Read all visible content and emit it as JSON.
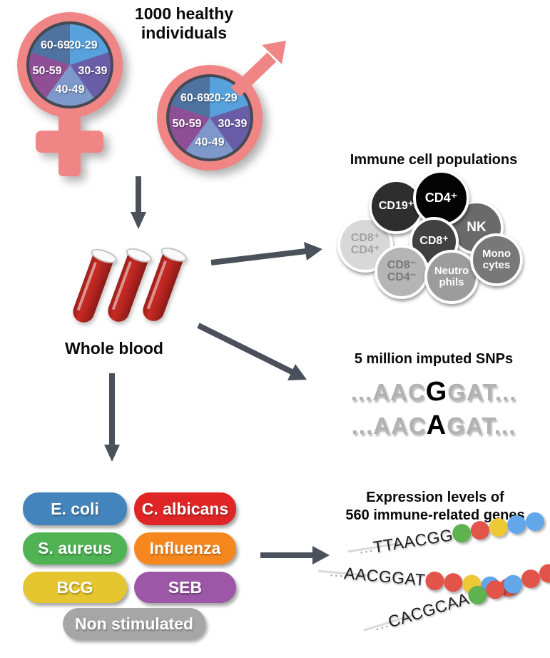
{
  "title": "1000 healthy\nindividuals",
  "cohort": {
    "symbol_color": "#ef8584",
    "age_groups": [
      "20-29",
      "30-39",
      "40-49",
      "50-59",
      "60-69"
    ],
    "slice_colors": [
      "#57a1dc",
      "#6a5da7",
      "#7d98ca",
      "#8f4f97",
      "#4e73a1"
    ]
  },
  "whole_blood": {
    "label": "Whole blood"
  },
  "immune_cells": {
    "title": "Immune cell populations",
    "cells": [
      {
        "label": "CD8⁺\nCD4⁺",
        "bg": "#d8d8d8",
        "fg": "#a2a2a2"
      },
      {
        "label": "CD19⁺",
        "bg": "#2e2e2e",
        "fg": "#ffffff"
      },
      {
        "label": "NK",
        "bg": "#6a6a6a",
        "fg": "#ffffff"
      },
      {
        "label": "CD4⁺",
        "bg": "#040404",
        "fg": "#ffffff"
      },
      {
        "label": "CD8⁺",
        "bg": "#414141",
        "fg": "#ffffff"
      },
      {
        "label": "CD8⁻\nCD4⁻",
        "bg": "#b5b5b5",
        "fg": "#787878"
      },
      {
        "label": "Neutro\nphils",
        "bg": "#9c9c9c",
        "fg": "#ffffff"
      },
      {
        "label": "Mono\ncytes",
        "bg": "#787878",
        "fg": "#ffffff"
      }
    ]
  },
  "snps": {
    "title": "5 million imputed SNPs",
    "sequences": [
      {
        "left": "...AAC",
        "snp": "G",
        "right": "GAT..."
      },
      {
        "left": "...AAC",
        "snp": "A",
        "right": "GAT..."
      }
    ]
  },
  "stimuli": {
    "items": [
      {
        "label": "E. coli",
        "color": "#4384bc"
      },
      {
        "label": "C. albicans",
        "color": "#e02526"
      },
      {
        "label": "S. aureus",
        "color": "#4fb253"
      },
      {
        "label": "Influenza",
        "color": "#f6871f"
      },
      {
        "label": "BCG",
        "color": "#e5c630"
      },
      {
        "label": "SEB",
        "color": "#9c57a7"
      },
      {
        "label": "Non stimulated",
        "color": "#a6a6a6"
      }
    ]
  },
  "expression": {
    "title_line1": "Expression levels of",
    "title_line2": "560 immune-related genes",
    "dot_colors": {
      "green": "#5eb250",
      "red": "#e25449",
      "yellow": "#edc935",
      "blue": "#61a7ea"
    },
    "strands": [
      {
        "ellipsis": "...",
        "text": "TTAACGG",
        "dots": [
          "green",
          "red",
          "yellow",
          "blue",
          "blue"
        ]
      },
      {
        "ellipsis": "...",
        "text": "AACGGAT",
        "dots": [
          "red",
          "red",
          "yellow",
          "blue",
          "red"
        ]
      },
      {
        "ellipsis": "...",
        "text": "CACGCAA",
        "dots": [
          "green",
          "red",
          "blue",
          "red",
          "red"
        ]
      }
    ]
  },
  "arrow_color": "#4a515b"
}
